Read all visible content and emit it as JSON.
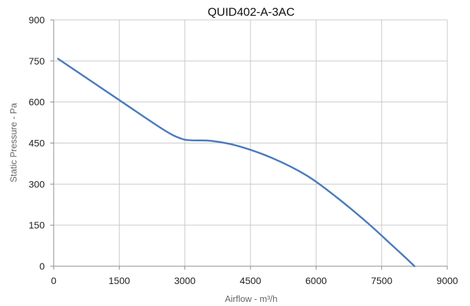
{
  "chart_data": {
    "type": "line",
    "title": "QUID402-A-3AC",
    "xlabel": "Airflow - m³/h",
    "ylabel": "Static Pressure - Pa",
    "xlim": [
      0,
      9000
    ],
    "ylim": [
      0,
      900
    ],
    "x_ticks": [
      "0",
      "1500",
      "3000",
      "4500",
      "6000",
      "7500",
      "9000"
    ],
    "y_ticks": [
      "0",
      "150",
      "300",
      "450",
      "600",
      "750",
      "900"
    ],
    "grid": true,
    "colors": {
      "line": "#4a7bbd",
      "grid": "#c8c8c8",
      "axis": "#888888"
    },
    "series": [
      {
        "x": [
          100,
          1500,
          2500,
          2900,
          3150,
          3600,
          4200,
          5000,
          5800,
          6500,
          7200,
          7700,
          8000,
          8250
        ],
        "values": [
          758,
          607,
          500,
          467,
          460,
          458,
          440,
          395,
          330,
          248,
          155,
          82,
          38,
          0
        ]
      }
    ]
  }
}
